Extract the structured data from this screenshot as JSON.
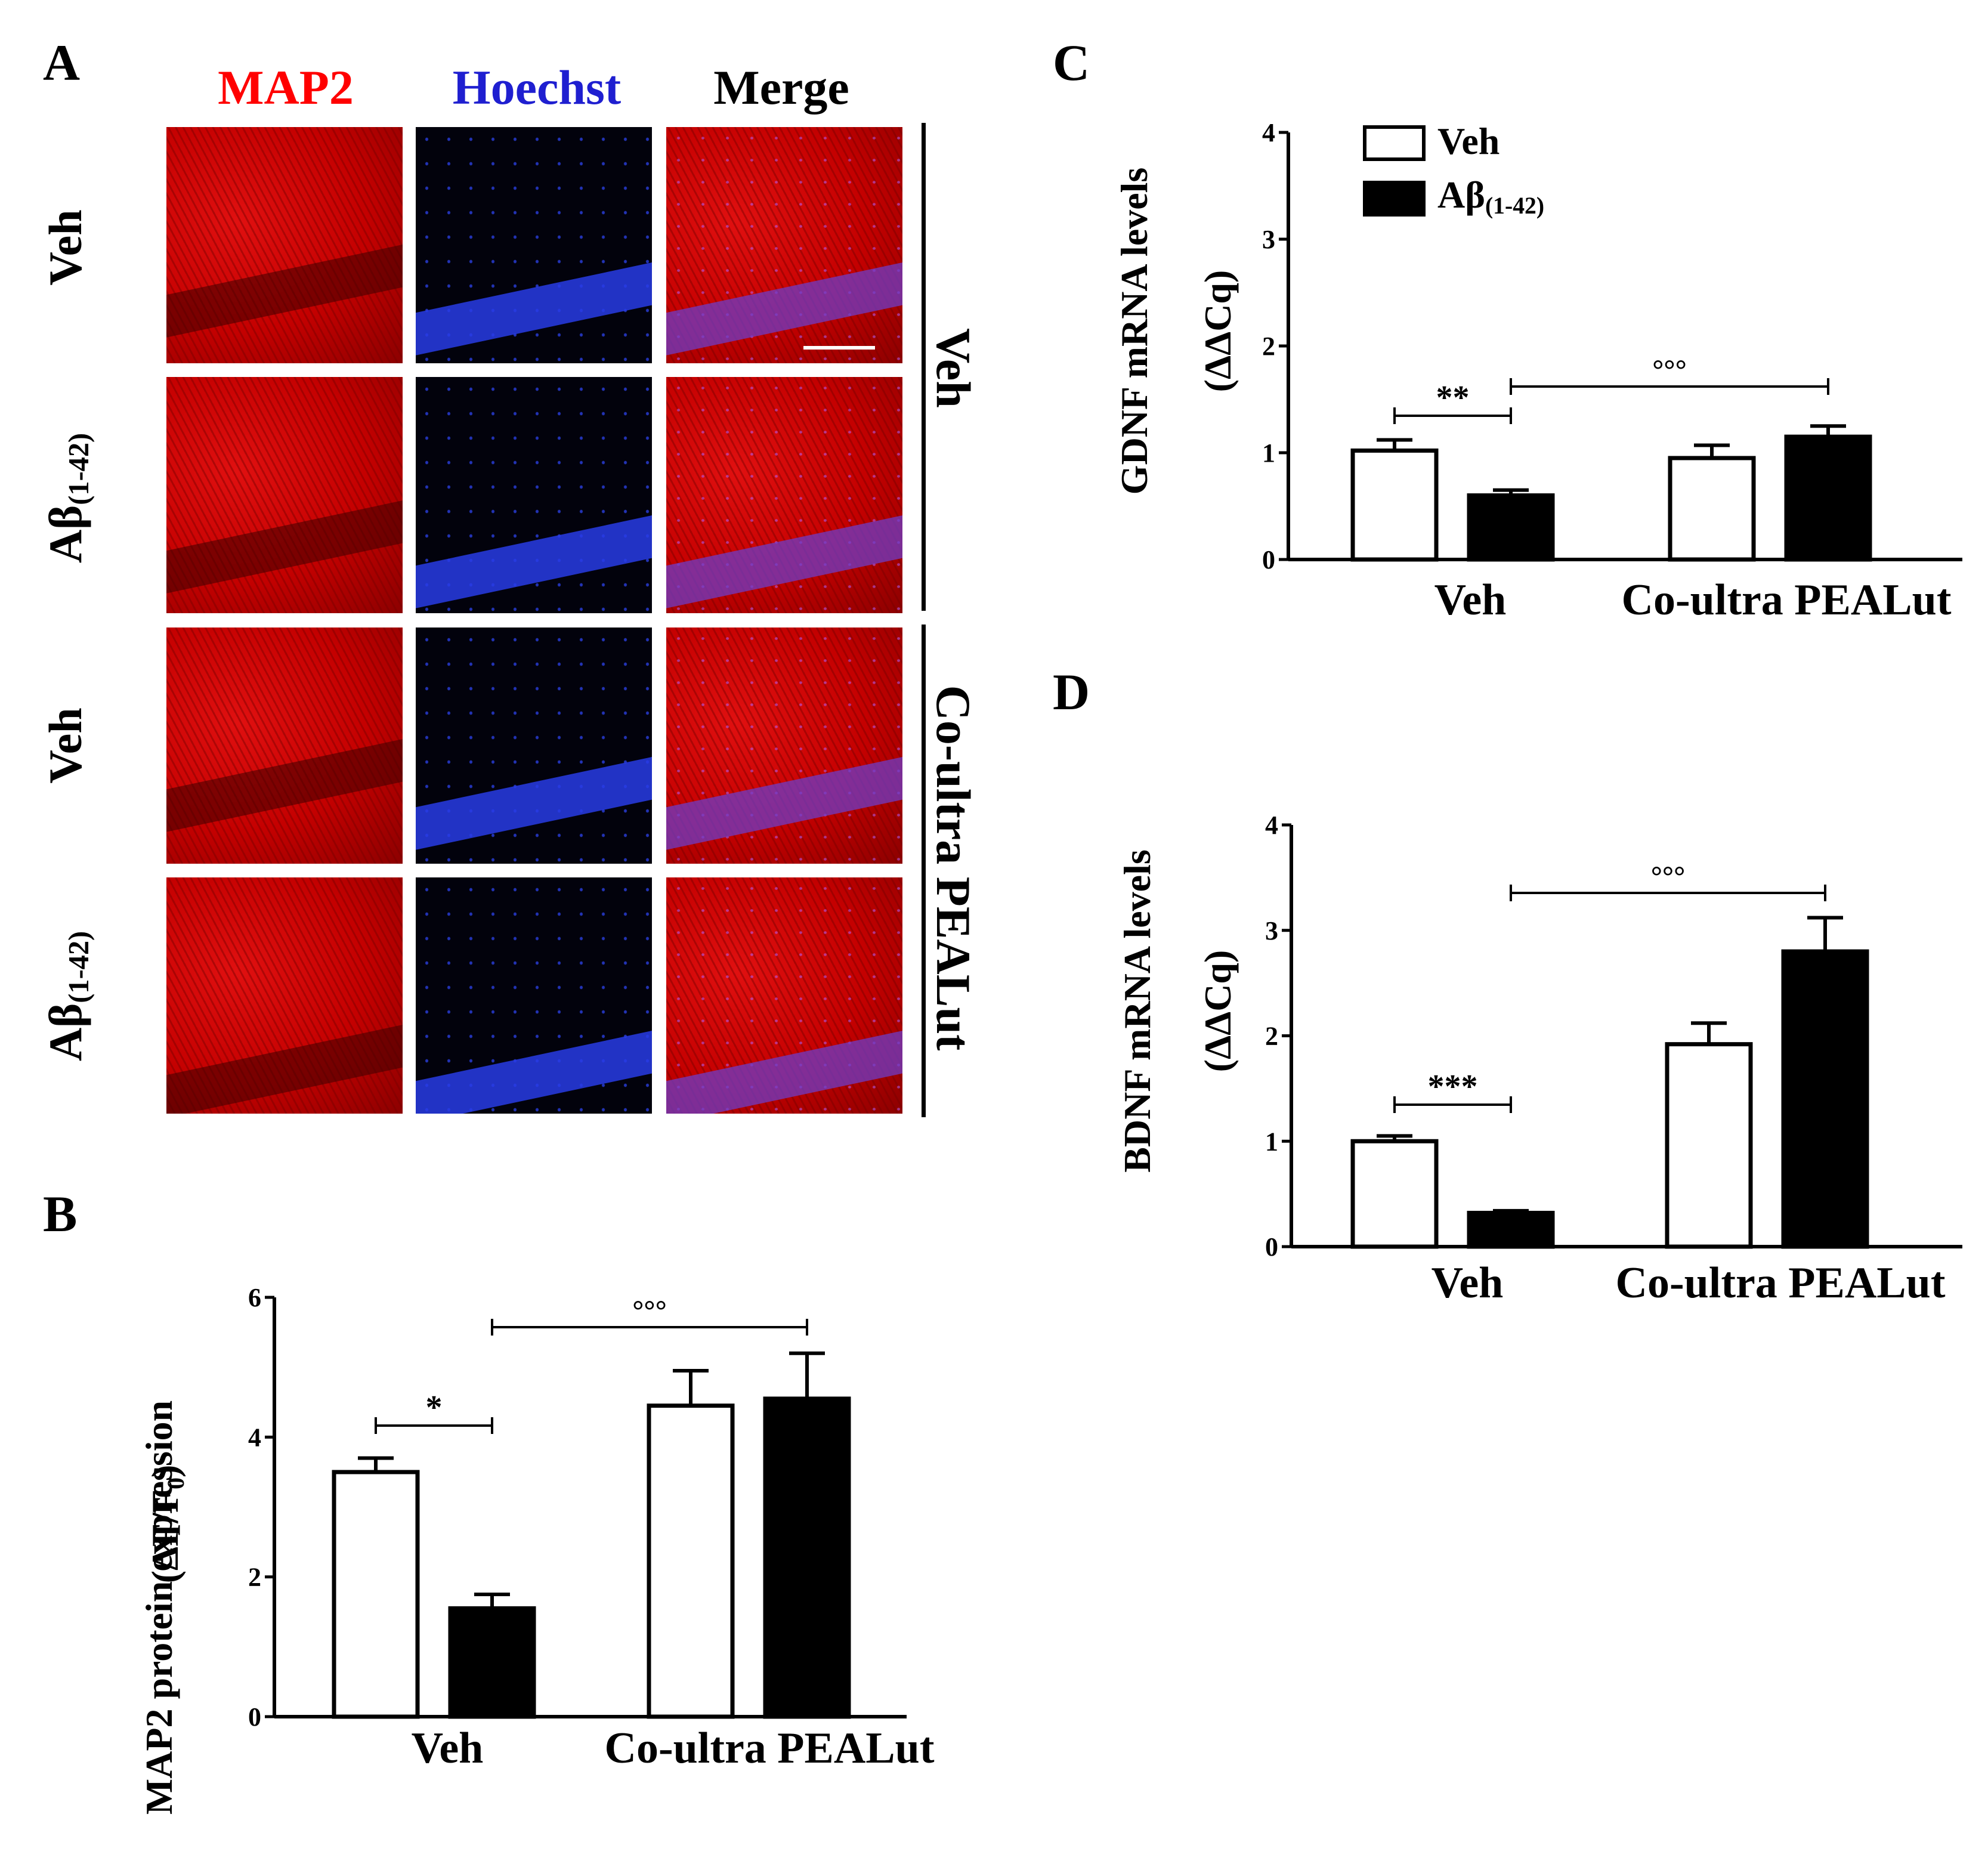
{
  "panel_letters": {
    "a": "A",
    "b": "B",
    "c": "C",
    "d": "D"
  },
  "panel_a": {
    "columns": [
      {
        "label": "MAP2",
        "color": "#ff0000"
      },
      {
        "label": "Hoechst",
        "color": "#1f1fd0"
      },
      {
        "label": "Merge",
        "color": "#000000"
      }
    ],
    "row_labels": {
      "veh": "Veh",
      "abeta_prefix": "Aβ",
      "abeta_sub": "(1-42)"
    },
    "group_labels": {
      "top": "Veh",
      "bottom": "Co-ultra PEALut"
    }
  },
  "legend": {
    "veh": "Veh",
    "abeta_prefix": "Aβ",
    "abeta_sub": "(1-42)",
    "colors": {
      "veh": "#ffffff",
      "abeta": "#000000"
    }
  },
  "y_labels": {
    "b_line1": "MAP2 protein expression",
    "b_line2_prefix": "(ΔF/F",
    "b_line2_sub": "0",
    "b_line2_suffix": ")",
    "c_line1": "GDNF mRNA levels",
    "c_line2": "(ΔΔCq)",
    "d_line1": "BDNF mRNA levels",
    "d_line2": "(ΔΔCq)"
  },
  "chart_data": [
    {
      "panel": "B",
      "type": "bar",
      "groups": [
        "Veh",
        "Co-ultra PEALut"
      ],
      "series": [
        {
          "name": "Veh",
          "values": [
            3.5,
            4.45
          ],
          "errors": [
            0.2,
            0.5
          ]
        },
        {
          "name": "Aβ(1-42)",
          "values": [
            1.55,
            4.55
          ],
          "errors": [
            0.2,
            0.65
          ]
        }
      ],
      "ylim": [
        0,
        6
      ],
      "yticks": [
        0,
        2,
        4,
        6
      ],
      "significance": [
        {
          "label": "*",
          "from": "Veh|Veh",
          "to": "Veh|Aβ(1-42)"
        },
        {
          "label": "°°°",
          "from": "Veh|Aβ(1-42)",
          "to": "Co-ultra PEALut|Aβ(1-42)"
        }
      ]
    },
    {
      "panel": "C",
      "type": "bar",
      "groups": [
        "Veh",
        "Co-ultra PEALut"
      ],
      "series": [
        {
          "name": "Veh",
          "values": [
            1.02,
            0.95
          ],
          "errors": [
            0.1,
            0.12
          ]
        },
        {
          "name": "Aβ(1-42)",
          "values": [
            0.6,
            1.15
          ],
          "errors": [
            0.05,
            0.1
          ]
        }
      ],
      "ylim": [
        0,
        4
      ],
      "yticks": [
        0,
        1,
        2,
        3,
        4
      ],
      "significance": [
        {
          "label": "**",
          "from": "Veh|Veh",
          "to": "Veh|Aβ(1-42)"
        },
        {
          "label": "°°°",
          "from": "Veh|Aβ(1-42)",
          "to": "Co-ultra PEALut|Aβ(1-42)"
        }
      ]
    },
    {
      "panel": "D",
      "type": "bar",
      "groups": [
        "Veh",
        "Co-ultra PEALut"
      ],
      "series": [
        {
          "name": "Veh",
          "values": [
            1.0,
            1.92
          ],
          "errors": [
            0.05,
            0.2
          ]
        },
        {
          "name": "Aβ(1-42)",
          "values": [
            0.32,
            2.8
          ],
          "errors": [
            0.02,
            0.32
          ]
        }
      ],
      "ylim": [
        0,
        4
      ],
      "yticks": [
        0,
        1,
        2,
        3,
        4
      ],
      "significance": [
        {
          "label": "***",
          "from": "Veh|Veh",
          "to": "Veh|Aβ(1-42)"
        },
        {
          "label": "°°°",
          "from": "Veh|Aβ(1-42)",
          "to": "Co-ultra PEALut|Aβ(1-42)"
        }
      ]
    }
  ]
}
